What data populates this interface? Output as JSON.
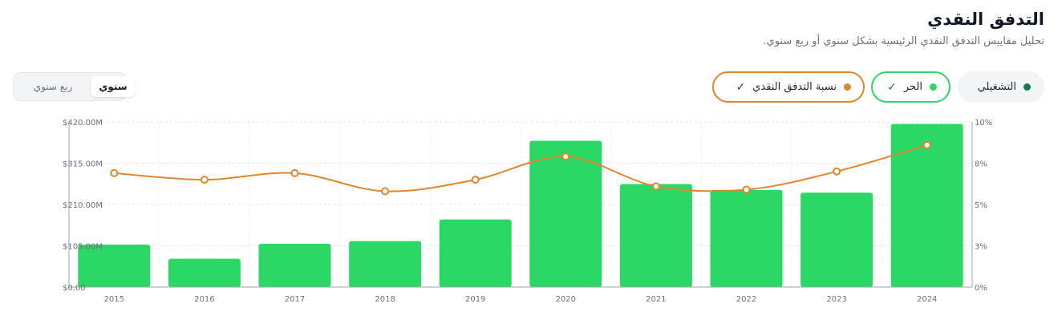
{
  "header": {
    "title": "التدفق النقدي",
    "subtitle": "تحليل مقاييس التدفق النقدي الرئيسية بشكل سنوي أو ربع سنوي."
  },
  "period_toggle": {
    "annual_label": "سنوي",
    "quarterly_label": "ربع سنوي",
    "selected": "سنوي"
  },
  "metric_filters": [
    {
      "label": "التشغيلي",
      "color": "#157a55",
      "active": false
    },
    {
      "label": "الحر",
      "color": "#2bd866",
      "active": true
    },
    {
      "label": "نسبة التدفق النقدي",
      "color": "#e0862c",
      "active": true
    }
  ],
  "chart_data": {
    "type": "bar",
    "categories": [
      "2015",
      "2016",
      "2017",
      "2018",
      "2019",
      "2020",
      "2021",
      "2022",
      "2023",
      "2024"
    ],
    "series": [
      {
        "kind": "bar",
        "axis": "left",
        "color": "#2bd866",
        "values": [
          108,
          72,
          110,
          117,
          172,
          372,
          262,
          247,
          240,
          415
        ]
      },
      {
        "kind": "line",
        "axis": "right",
        "color": "#e0862c",
        "values": [
          6.9,
          6.5,
          6.9,
          5.8,
          6.5,
          7.9,
          6.1,
          5.9,
          7.0,
          8.6
        ]
      }
    ],
    "y_left": {
      "ylim": [
        0,
        420
      ],
      "ticks": [
        "$0.00",
        "$105.00M",
        "$210.00M",
        "$315.00M",
        "$420.00M"
      ]
    },
    "y_right": {
      "ylim": [
        0,
        10
      ],
      "ticks": [
        "0%",
        "3%",
        "5%",
        "8%",
        "10%"
      ]
    },
    "grid": true,
    "grid_style": "dashed"
  }
}
